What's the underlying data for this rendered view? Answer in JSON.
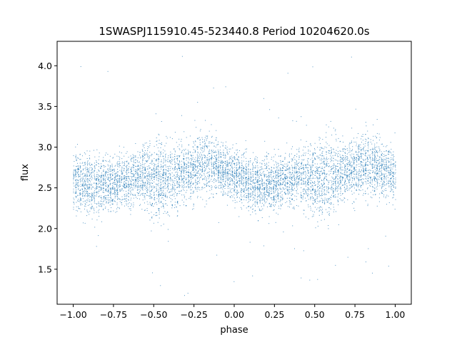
{
  "chart_data": {
    "type": "scatter",
    "title": "1SWASPJ115910.45-523440.8 Period 10204620.0s",
    "xlabel": "phase",
    "ylabel": "flux",
    "xlim": [
      -1.1,
      1.1
    ],
    "ylim": [
      1.07,
      4.3
    ],
    "x_ticks": [
      -1.0,
      -0.75,
      -0.5,
      -0.25,
      0.0,
      0.25,
      0.5,
      0.75,
      1.0
    ],
    "x_tick_labels": [
      "−1.00",
      "−0.75",
      "−0.50",
      "−0.25",
      "0.00",
      "0.25",
      "0.50",
      "0.75",
      "1.00"
    ],
    "y_ticks": [
      1.5,
      2.0,
      2.5,
      3.0,
      3.5,
      4.0
    ],
    "y_tick_labels": [
      "1.5",
      "2.0",
      "2.5",
      "3.0",
      "3.5",
      "4.0"
    ],
    "grid": false,
    "legend": "none",
    "marker_color": "#1f77b4",
    "phase_range": [
      -1.0,
      1.0
    ],
    "flux_profile": [
      {
        "phase": -1.0,
        "median": 2.6,
        "spread": 0.35
      },
      {
        "phase": -0.9,
        "median": 2.55,
        "spread": 0.32
      },
      {
        "phase": -0.75,
        "median": 2.55,
        "spread": 0.28
      },
      {
        "phase": -0.6,
        "median": 2.65,
        "spread": 0.3
      },
      {
        "phase": -0.45,
        "median": 2.6,
        "spread": 0.45
      },
      {
        "phase": -0.3,
        "median": 2.7,
        "spread": 0.3
      },
      {
        "phase": -0.2,
        "median": 2.8,
        "spread": 0.35
      },
      {
        "phase": -0.1,
        "median": 2.75,
        "spread": 0.3
      },
      {
        "phase": 0.0,
        "median": 2.65,
        "spread": 0.28
      },
      {
        "phase": 0.1,
        "median": 2.55,
        "spread": 0.3
      },
      {
        "phase": 0.25,
        "median": 2.55,
        "spread": 0.28
      },
      {
        "phase": 0.4,
        "median": 2.65,
        "spread": 0.3
      },
      {
        "phase": 0.55,
        "median": 2.6,
        "spread": 0.45
      },
      {
        "phase": 0.7,
        "median": 2.7,
        "spread": 0.3
      },
      {
        "phase": 0.8,
        "median": 2.8,
        "spread": 0.35
      },
      {
        "phase": 0.9,
        "median": 2.75,
        "spread": 0.3
      },
      {
        "phase": 1.0,
        "median": 2.65,
        "spread": 0.3
      }
    ]
  }
}
